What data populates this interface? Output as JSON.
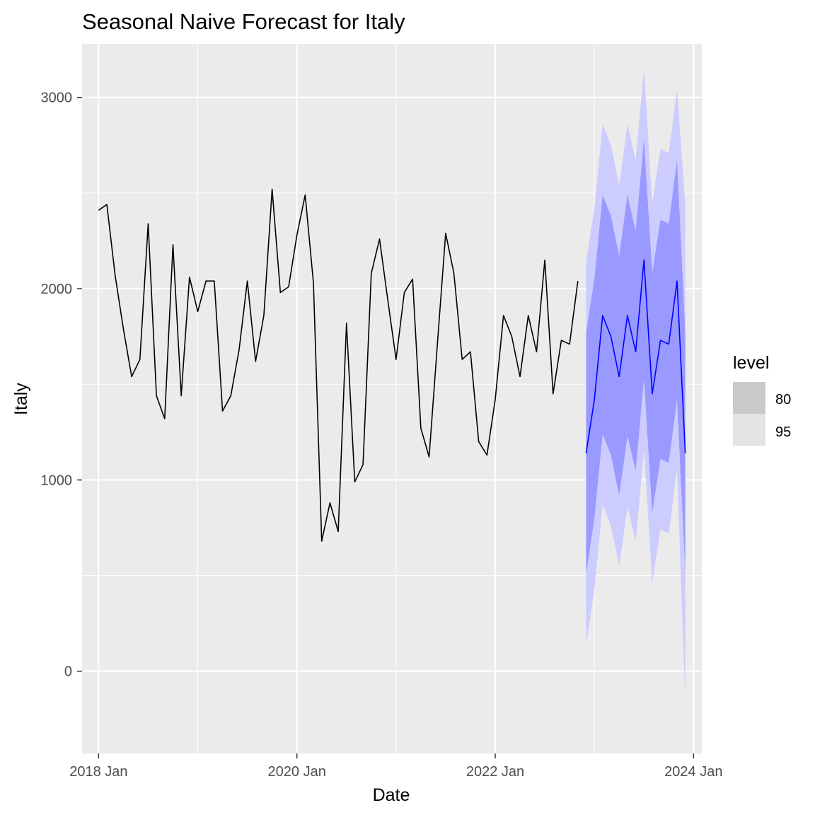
{
  "chart_data": {
    "type": "line",
    "title": "Seasonal Naive Forecast for Italy",
    "xlabel": "Date",
    "ylabel": "Italy",
    "x_tick_labels": [
      "2018 Jan",
      "2020 Jan",
      "2022 Jan",
      "2024 Jan"
    ],
    "y_tick_labels": [
      "0",
      "1000",
      "2000",
      "3000"
    ],
    "y_ticks": [
      0,
      1000,
      2000,
      3000
    ],
    "ylim": [
      -430,
      3280
    ],
    "xlim": [
      "2017-11",
      "2024-02"
    ],
    "grid": true,
    "legend": {
      "title": "level",
      "position": "right",
      "entries": [
        {
          "label": "80",
          "color": "#c9c9c9"
        },
        {
          "label": "95",
          "color": "#e3e3e3"
        }
      ]
    },
    "colors": {
      "panel_background": "#ebebeb",
      "grid": "#ffffff",
      "history_line": "#000000",
      "forecast_line": "#0000ff",
      "band_80": "#9999ff",
      "band_95": "#ccccff"
    },
    "history": {
      "name": "Italy",
      "x": [
        "2018-01",
        "2018-02",
        "2018-03",
        "2018-04",
        "2018-05",
        "2018-06",
        "2018-07",
        "2018-08",
        "2018-09",
        "2018-10",
        "2018-11",
        "2018-12",
        "2019-01",
        "2019-02",
        "2019-03",
        "2019-04",
        "2019-05",
        "2019-06",
        "2019-07",
        "2019-08",
        "2019-09",
        "2019-10",
        "2019-11",
        "2019-12",
        "2020-01",
        "2020-02",
        "2020-03",
        "2020-04",
        "2020-05",
        "2020-06",
        "2020-07",
        "2020-08",
        "2020-09",
        "2020-10",
        "2020-11",
        "2020-12",
        "2021-01",
        "2021-02",
        "2021-03",
        "2021-04",
        "2021-05",
        "2021-06",
        "2021-07",
        "2021-08",
        "2021-09",
        "2021-10",
        "2021-11",
        "2021-12",
        "2022-01",
        "2022-02",
        "2022-03",
        "2022-04",
        "2022-05",
        "2022-06",
        "2022-07",
        "2022-08",
        "2022-09",
        "2022-10",
        "2022-11",
        "2022-12"
      ],
      "y": [
        2410,
        2440,
        2070,
        1790,
        1540,
        1630,
        2340,
        1440,
        1320,
        2230,
        1440,
        2060,
        1880,
        2040,
        2040,
        1360,
        1440,
        1680,
        2040,
        1620,
        1860,
        2520,
        1980,
        2010,
        2280,
        2490,
        2030,
        680,
        880,
        730,
        1820,
        990,
        1080,
        2080,
        2260,
        1940,
        1630,
        1980,
        2050,
        1270,
        1120,
        1710,
        2290,
        2080,
        1630,
        1670,
        1200,
        1130,
        1420,
        1860,
        1750,
        1540,
        1860,
        1670,
        2150,
        1450,
        1730,
        1710,
        2040,
        1150
      ]
    },
    "forecast": {
      "x": [
        "2022-12",
        "2023-01",
        "2023-02",
        "2023-03",
        "2023-04",
        "2023-05",
        "2023-06",
        "2023-07",
        "2023-08",
        "2023-09",
        "2023-10",
        "2023-11",
        "2023-12"
      ],
      "mean": [
        1140,
        1420,
        1860,
        1750,
        1540,
        1860,
        1670,
        2150,
        1450,
        1730,
        1710,
        2040,
        1140
      ],
      "lo80": [
        510,
        800,
        1240,
        1130,
        920,
        1230,
        1050,
        1530,
        830,
        1110,
        1090,
        1420,
        520
      ],
      "hi80": [
        1770,
        2050,
        2490,
        2380,
        2170,
        2490,
        2300,
        2780,
        2080,
        2360,
        2340,
        2670,
        1770
      ],
      "lo95": [
        140,
        430,
        870,
        760,
        550,
        860,
        680,
        1160,
        460,
        740,
        720,
        1050,
        -150
      ],
      "hi95": [
        2140,
        2420,
        2860,
        2750,
        2540,
        2860,
        2670,
        3150,
        2450,
        2730,
        2710,
        3040,
        2440
      ]
    }
  }
}
